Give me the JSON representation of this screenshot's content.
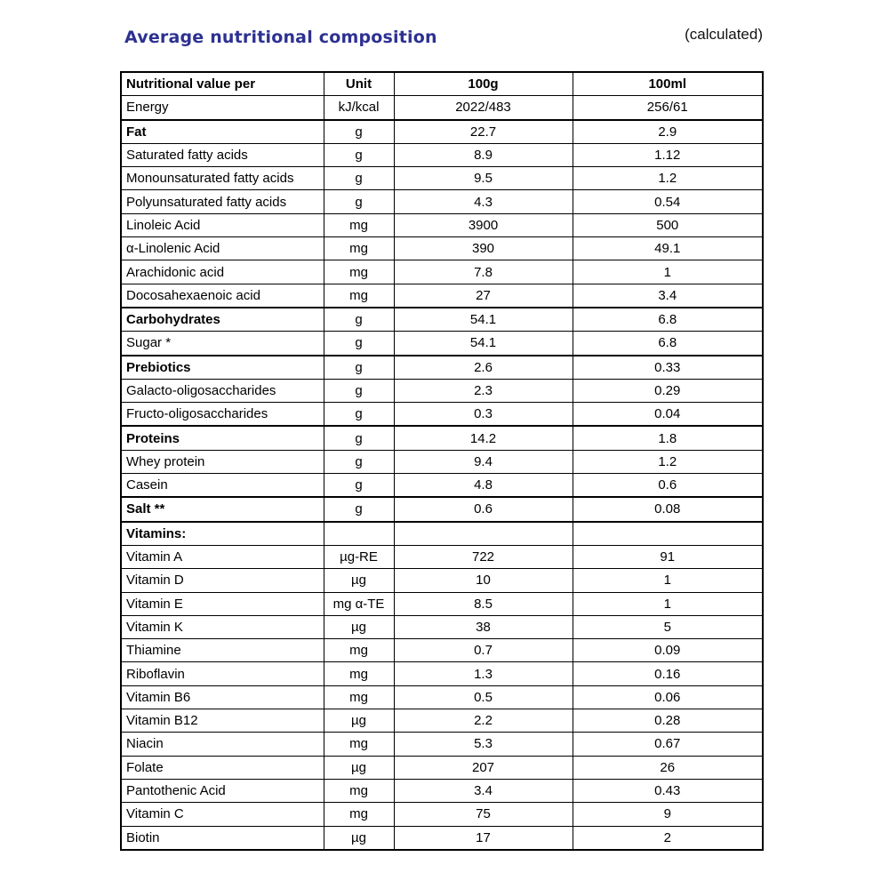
{
  "page": {
    "title": "Average nutritional composition",
    "note": "(calculated)",
    "title_color": "#2d3191"
  },
  "table": {
    "headers": [
      "Nutritional value per",
      "Unit",
      "100g",
      "100ml"
    ],
    "rows": [
      {
        "name": "Energy",
        "unit": "kJ/kcal",
        "per_100g": "2022/483",
        "per_100ml": "256/61",
        "bold": false,
        "section": false
      },
      {
        "name": "Fat",
        "unit": "g",
        "per_100g": "22.7",
        "per_100ml": "2.9",
        "bold": true,
        "section": true
      },
      {
        "name": "Saturated fatty acids",
        "unit": "g",
        "per_100g": "8.9",
        "per_100ml": "1.12",
        "bold": false,
        "section": false
      },
      {
        "name": "Monounsaturated fatty acids",
        "unit": "g",
        "per_100g": "9.5",
        "per_100ml": "1.2",
        "bold": false,
        "section": false
      },
      {
        "name": "Polyunsaturated fatty acids",
        "unit": "g",
        "per_100g": "4.3",
        "per_100ml": "0.54",
        "bold": false,
        "section": false
      },
      {
        "name": "Linoleic Acid",
        "unit": "mg",
        "per_100g": "3900",
        "per_100ml": "500",
        "bold": false,
        "section": false
      },
      {
        "name": "α-Linolenic Acid",
        "unit": "mg",
        "per_100g": "390",
        "per_100ml": "49.1",
        "bold": false,
        "section": false
      },
      {
        "name": "Arachidonic acid",
        "unit": "mg",
        "per_100g": "7.8",
        "per_100ml": "1",
        "bold": false,
        "section": false
      },
      {
        "name": "Docosahexaenoic acid",
        "unit": "mg",
        "per_100g": "27",
        "per_100ml": "3.4",
        "bold": false,
        "section": false
      },
      {
        "name": "Carbohydrates",
        "unit": "g",
        "per_100g": "54.1",
        "per_100ml": "6.8",
        "bold": true,
        "section": true
      },
      {
        "name": "Sugar *",
        "unit": "g",
        "per_100g": "54.1",
        "per_100ml": "6.8",
        "bold": false,
        "section": false
      },
      {
        "name": "Prebiotics",
        "unit": "g",
        "per_100g": "2.6",
        "per_100ml": "0.33",
        "bold": true,
        "section": true
      },
      {
        "name": "Galacto-oligosaccharides",
        "unit": "g",
        "per_100g": "2.3",
        "per_100ml": "0.29",
        "bold": false,
        "section": false
      },
      {
        "name": "Fructo-oligosaccharides",
        "unit": "g",
        "per_100g": "0.3",
        "per_100ml": "0.04",
        "bold": false,
        "section": false
      },
      {
        "name": "Proteins",
        "unit": "g",
        "per_100g": "14.2",
        "per_100ml": "1.8",
        "bold": true,
        "section": true
      },
      {
        "name": "Whey protein",
        "unit": "g",
        "per_100g": "9.4",
        "per_100ml": "1.2",
        "bold": false,
        "section": false
      },
      {
        "name": "Casein",
        "unit": "g",
        "per_100g": "4.8",
        "per_100ml": "0.6",
        "bold": false,
        "section": false
      },
      {
        "name": "Salt **",
        "unit": "g",
        "per_100g": "0.6",
        "per_100ml": "0.08",
        "bold": true,
        "section": true
      },
      {
        "name": "Vitamins:",
        "unit": "",
        "per_100g": "",
        "per_100ml": "",
        "bold": true,
        "section": true
      },
      {
        "name": "Vitamin A",
        "unit": "µg-RE",
        "per_100g": "722",
        "per_100ml": "91",
        "bold": false,
        "section": false
      },
      {
        "name": "Vitamin D",
        "unit": "µg",
        "per_100g": "10",
        "per_100ml": "1",
        "bold": false,
        "section": false
      },
      {
        "name": "Vitamin E",
        "unit": "mg α-TE",
        "per_100g": "8.5",
        "per_100ml": "1",
        "bold": false,
        "section": false
      },
      {
        "name": "Vitamin K",
        "unit": "µg",
        "per_100g": "38",
        "per_100ml": "5",
        "bold": false,
        "section": false
      },
      {
        "name": "Thiamine",
        "unit": "mg",
        "per_100g": "0.7",
        "per_100ml": "0.09",
        "bold": false,
        "section": false
      },
      {
        "name": "Riboflavin",
        "unit": "mg",
        "per_100g": "1.3",
        "per_100ml": "0.16",
        "bold": false,
        "section": false
      },
      {
        "name": "Vitamin B6",
        "unit": "mg",
        "per_100g": "0.5",
        "per_100ml": "0.06",
        "bold": false,
        "section": false
      },
      {
        "name": "Vitamin B12",
        "unit": "µg",
        "per_100g": "2.2",
        "per_100ml": "0.28",
        "bold": false,
        "section": false
      },
      {
        "name": "Niacin",
        "unit": "mg",
        "per_100g": "5.3",
        "per_100ml": "0.67",
        "bold": false,
        "section": false
      },
      {
        "name": "Folate",
        "unit": "µg",
        "per_100g": "207",
        "per_100ml": "26",
        "bold": false,
        "section": false
      },
      {
        "name": "Pantothenic Acid",
        "unit": "mg",
        "per_100g": "3.4",
        "per_100ml": "0.43",
        "bold": false,
        "section": false
      },
      {
        "name": "Vitamin C",
        "unit": "mg",
        "per_100g": "75",
        "per_100ml": "9",
        "bold": false,
        "section": false
      },
      {
        "name": "Biotin",
        "unit": "µg",
        "per_100g": "17",
        "per_100ml": "2",
        "bold": false,
        "section": false
      }
    ]
  }
}
